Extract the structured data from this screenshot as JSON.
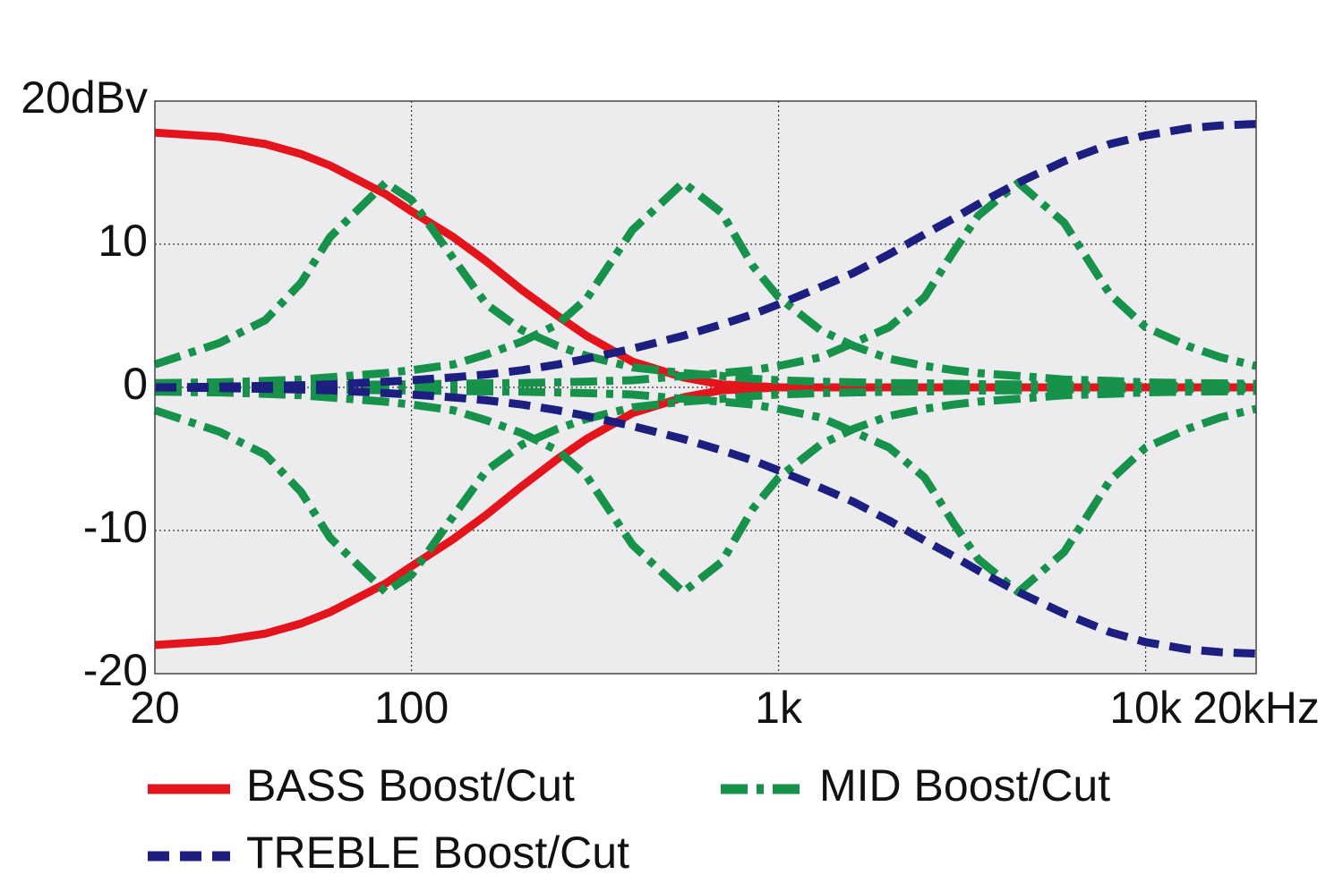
{
  "chart_data": {
    "type": "line",
    "x": [
      20,
      30,
      40,
      50,
      60,
      85,
      100,
      130,
      160,
      200,
      250,
      300,
      400,
      550,
      700,
      850,
      1000,
      1300,
      1600,
      2000,
      2500,
      3000,
      3500,
      4500,
      6000,
      8000,
      10000,
      13000,
      16000,
      20000
    ],
    "xlog": true,
    "xlim": [
      20,
      20000
    ],
    "xticks": [
      20,
      100,
      {
        "value": 1000,
        "label": "1k"
      },
      {
        "value": 10000,
        "label": "10k"
      },
      {
        "value": 20000,
        "label": "20kHz"
      }
    ],
    "ylim": [
      -20,
      20
    ],
    "yticks": [
      -20,
      -10,
      0,
      10,
      {
        "value": 20,
        "label": "20dBv"
      }
    ],
    "grid": true,
    "series": [
      {
        "name": "BASS Boost/Cut",
        "color": "#e3141b",
        "dash": "solid",
        "curves": [
          {
            "values": [
              17.8,
              17.5,
              17,
              16.3,
              15.5,
              13.5,
              12.3,
              10.5,
              8.8,
              6.8,
              5,
              3.6,
              1.8,
              0.7,
              0.2,
              0.1,
              0,
              0,
              0,
              0,
              0,
              0,
              0,
              0,
              0,
              0,
              0,
              0,
              0,
              0
            ]
          },
          {
            "values": [
              -18,
              -17.7,
              -17.2,
              -16.5,
              -15.7,
              -13.7,
              -12.5,
              -10.6,
              -8.9,
              -6.9,
              -5,
              -3.6,
              -1.8,
              -0.7,
              -0.2,
              -0.1,
              0,
              0,
              0,
              0,
              0,
              0,
              0,
              0,
              0,
              0,
              0,
              0,
              0,
              0
            ]
          }
        ]
      },
      {
        "name": "MID Boost/Cut",
        "color": "#16924a",
        "dash": "dashdot",
        "curves": [
          {
            "values": [
              1.6,
              3.1,
              4.7,
              7.3,
              10.5,
              14.3,
              13.1,
              9,
              5.8,
              4,
              2.9,
              2.2,
              1.4,
              1,
              0.8,
              0.6,
              0.5,
              0.4,
              0.35,
              0.3,
              0.28,
              0.25,
              0.22,
              0.2,
              0.15,
              0.12,
              0.1,
              0.1,
              0.1,
              0.1
            ]
          },
          {
            "values": [
              -1.6,
              -3.1,
              -4.7,
              -7.3,
              -10.5,
              -14.3,
              -13.1,
              -9,
              -5.8,
              -4,
              -2.9,
              -2.2,
              -1.4,
              -1,
              -0.8,
              -0.6,
              -0.5,
              -0.4,
              -0.35,
              -0.3,
              -0.28,
              -0.25,
              -0.22,
              -0.2,
              -0.15,
              -0.12,
              -0.1,
              -0.1,
              -0.1,
              -0.1
            ]
          },
          {
            "values": [
              0.3,
              0.35,
              0.45,
              0.55,
              0.7,
              1,
              1.2,
              1.6,
              2.3,
              3.2,
              4.4,
              6.2,
              11,
              14.3,
              12.2,
              8.5,
              6.3,
              4,
              2.9,
              2,
              1.5,
              1.2,
              1,
              0.8,
              0.55,
              0.45,
              0.35,
              0.3,
              0.28,
              0.25
            ]
          },
          {
            "values": [
              -0.3,
              -0.35,
              -0.45,
              -0.55,
              -0.7,
              -1,
              -1.2,
              -1.6,
              -2.3,
              -3.2,
              -4.4,
              -6.2,
              -11,
              -14.3,
              -12.2,
              -8.5,
              -6.3,
              -4,
              -2.9,
              -2,
              -1.5,
              -1.2,
              -1,
              -0.8,
              -0.55,
              -0.45,
              -0.35,
              -0.3,
              -0.28,
              -0.25
            ]
          },
          {
            "values": [
              0.1,
              0.1,
              0.1,
              0.12,
              0.15,
              0.2,
              0.22,
              0.25,
              0.28,
              0.3,
              0.35,
              0.4,
              0.5,
              0.8,
              1,
              1.2,
              1.5,
              2.1,
              3.1,
              4.2,
              6.3,
              9.5,
              12,
              14.3,
              11.5,
              6.5,
              4.2,
              2.9,
              2.1,
              1.5
            ]
          },
          {
            "values": [
              -0.1,
              -0.1,
              -0.1,
              -0.12,
              -0.15,
              -0.2,
              -0.22,
              -0.25,
              -0.28,
              -0.3,
              -0.35,
              -0.4,
              -0.5,
              -0.8,
              -1,
              -1.2,
              -1.5,
              -2.1,
              -3.1,
              -4.2,
              -6.3,
              -9.5,
              -12,
              -14.3,
              -11.5,
              -6.5,
              -4.2,
              -2.9,
              -2.1,
              -1.5
            ]
          }
        ]
      },
      {
        "name": "TREBLE Boost/Cut",
        "color": "#1c1f7f",
        "dash": "dashed",
        "curves": [
          {
            "values": [
              0,
              0.05,
              0.1,
              0.15,
              0.2,
              0.4,
              0.5,
              0.7,
              0.9,
              1.2,
              1.6,
              2,
              2.7,
              3.6,
              4.4,
              5.1,
              5.8,
              7,
              8,
              9.3,
              10.7,
              11.8,
              12.8,
              14.3,
              15.8,
              17,
              17.6,
              18.1,
              18.3,
              18.4
            ]
          },
          {
            "values": [
              0,
              -0.05,
              -0.1,
              -0.15,
              -0.2,
              -0.4,
              -0.5,
              -0.7,
              -0.9,
              -1.2,
              -1.6,
              -2,
              -2.7,
              -3.6,
              -4.4,
              -5.1,
              -5.8,
              -7,
              -8,
              -9.3,
              -10.7,
              -11.8,
              -12.8,
              -14.3,
              -15.8,
              -17.1,
              -17.8,
              -18.3,
              -18.5,
              -18.6
            ]
          }
        ]
      }
    ]
  }
}
